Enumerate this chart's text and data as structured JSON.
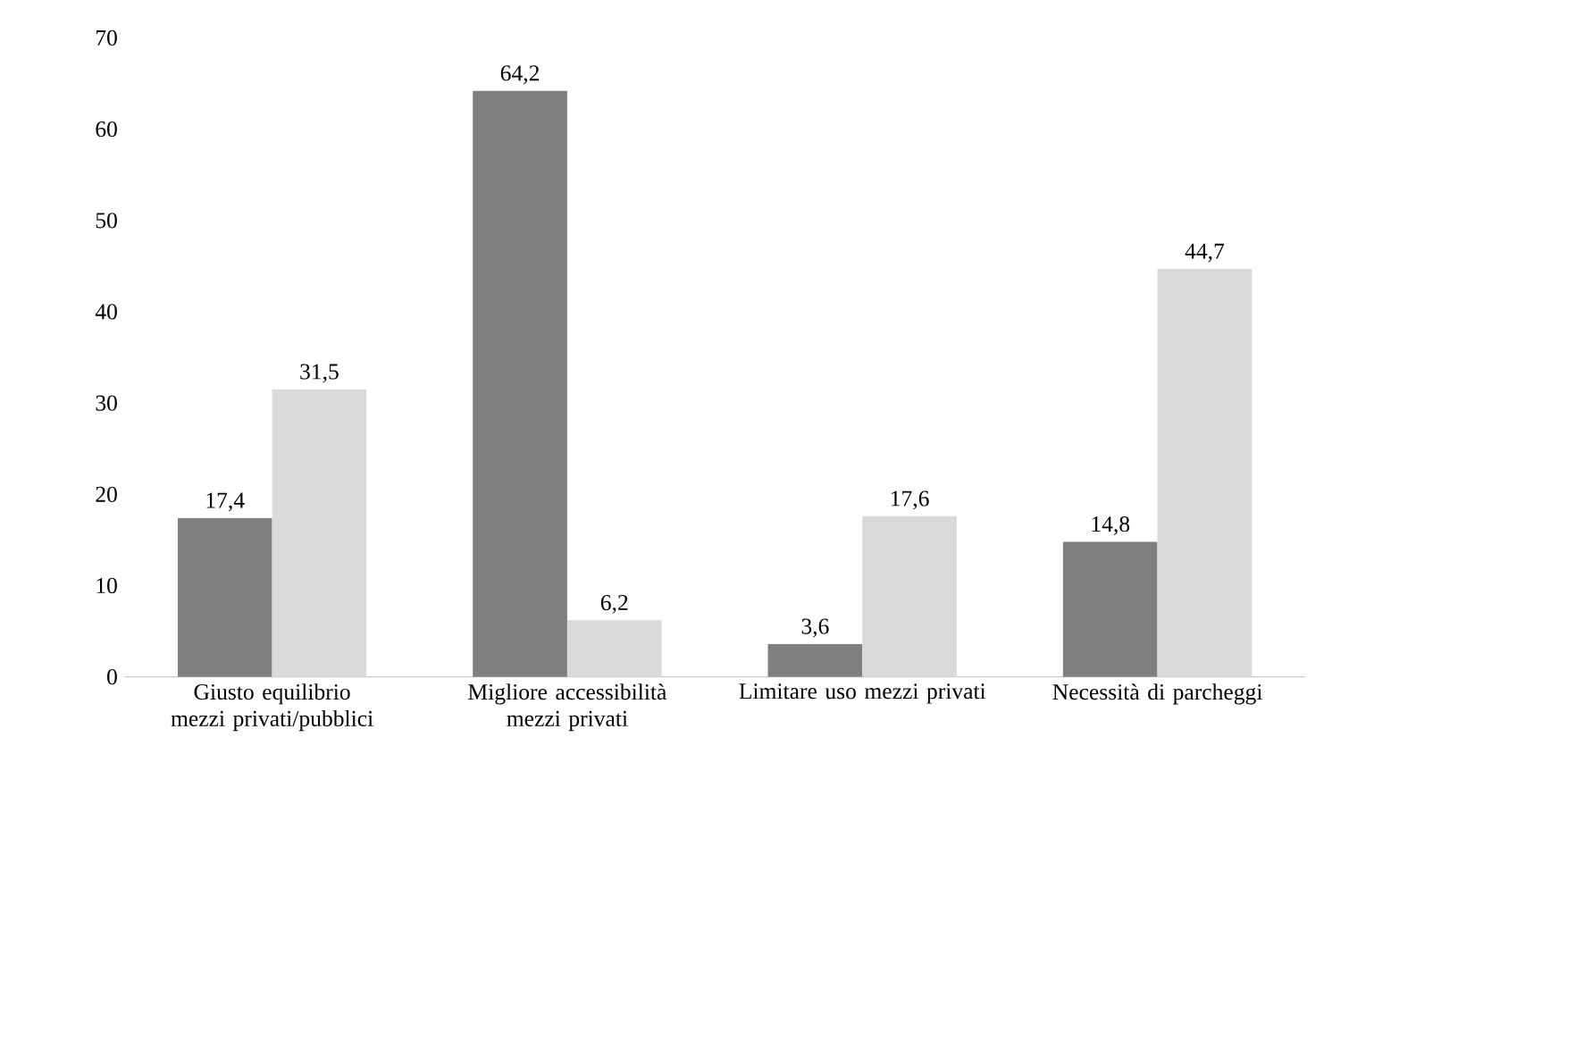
{
  "chart_data": {
    "type": "bar",
    "categories": [
      "Giusto equilibrio mezzi privati/pubblici",
      "Migliore accessibilità mezzi privati",
      "Limitare uso mezzi privati",
      "Necessità di parcheggi"
    ],
    "series": [
      {
        "color": "#7f7f7f",
        "values": [
          17.4,
          64.2,
          3.6,
          14.8
        ],
        "value_labels": [
          "17,4",
          "64,2",
          "3,6",
          "14,8"
        ]
      },
      {
        "color": "#d9d9d9",
        "values": [
          31.5,
          6.2,
          17.6,
          44.7
        ],
        "value_labels": [
          "31,5",
          "6,2",
          "17,6",
          "44,7"
        ]
      }
    ],
    "ylim": [
      0,
      70
    ],
    "yticks": [
      0,
      10,
      20,
      30,
      40,
      50,
      60,
      70
    ]
  }
}
